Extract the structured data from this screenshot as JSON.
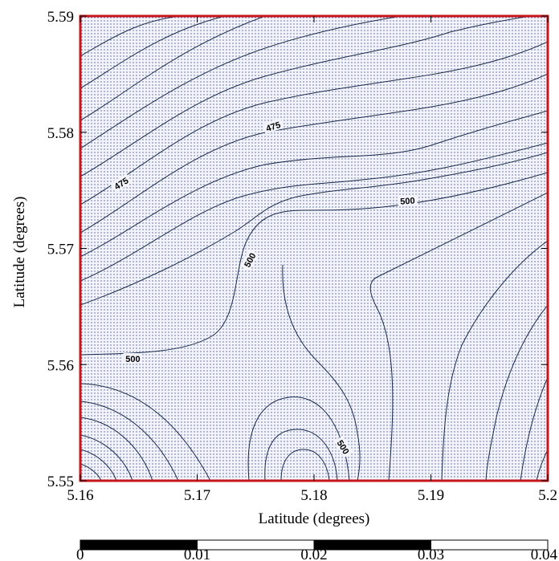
{
  "map": {
    "x_axis": {
      "title": "Latitude (degrees)",
      "range": [
        5.16,
        5.2
      ],
      "ticks": [
        "5.16",
        "5.17",
        "5.18",
        "5.19",
        "5.2"
      ]
    },
    "y_axis": {
      "title": "Latitude (degrees)",
      "range": [
        5.55,
        5.59
      ],
      "ticks": [
        "5.55",
        "5.56",
        "5.57",
        "5.58",
        "5.59"
      ]
    },
    "frame_color": "#c8171c",
    "contour_color": "#1a2a4a",
    "fill_dot_color": "#4a5a9a",
    "contour_labels": [
      {
        "text": "475",
        "lon": 5.1765,
        "lat": 5.5805,
        "angle": -18
      },
      {
        "text": "475",
        "lon": 5.1635,
        "lat": 5.5756,
        "angle": -32
      },
      {
        "text": "500",
        "lon": 5.188,
        "lat": 5.5741,
        "angle": -4
      },
      {
        "text": "500",
        "lon": 5.1745,
        "lat": 5.569,
        "angle": -62
      },
      {
        "text": "500",
        "lon": 5.1645,
        "lat": 5.5605,
        "angle": 0
      },
      {
        "text": "500",
        "lon": 5.1825,
        "lat": 5.5529,
        "angle": 58
      }
    ]
  },
  "scale_bar": {
    "ticks": [
      "0",
      "0.01",
      "0.02",
      "0.03",
      "0.04"
    ],
    "segments": [
      "black",
      "white",
      "black",
      "white"
    ]
  }
}
